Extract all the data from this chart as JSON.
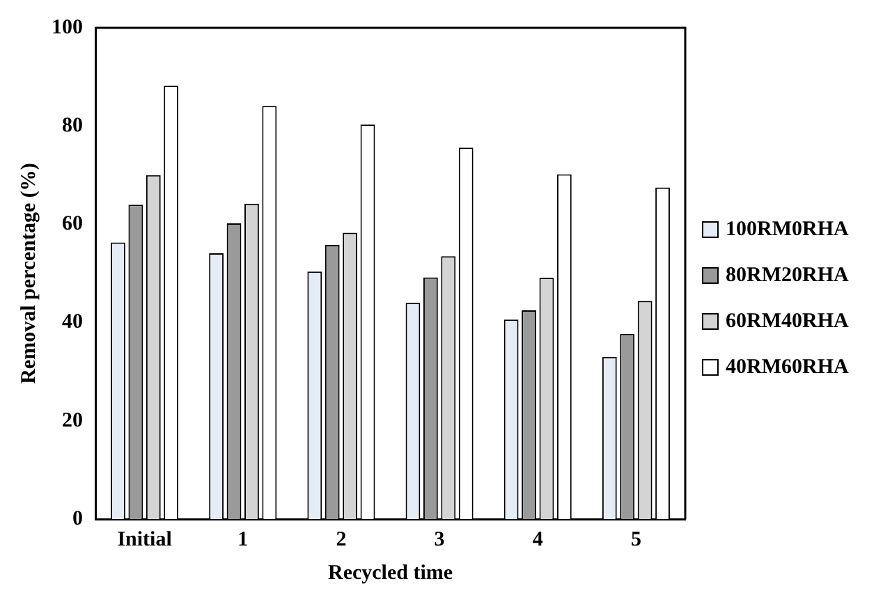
{
  "chart_data": {
    "type": "bar",
    "xlabel": "Recycled time",
    "ylabel": "Removal percentage (%)",
    "categories": [
      "Initial",
      "1",
      "2",
      "3",
      "4",
      "5"
    ],
    "series": [
      {
        "name": "100RM0RHA",
        "color": "#e6ecf5",
        "values": [
          56.3,
          54.1,
          50.4,
          44,
          40.6,
          33
        ]
      },
      {
        "name": "80RM20RHA",
        "color": "#9a9a9a",
        "values": [
          64,
          60.2,
          55.8,
          49.2,
          42.5,
          37.7
        ]
      },
      {
        "name": "60RM40RHA",
        "color": "#d4d4d4",
        "values": [
          70,
          64.2,
          58.3,
          53.5,
          49.1,
          44.4
        ]
      },
      {
        "name": "40RM60RHA",
        "color": "#ffffff",
        "values": [
          88.2,
          84.1,
          80.3,
          75.6,
          70.2,
          67.5
        ]
      }
    ],
    "ylim": [
      0,
      100
    ],
    "yticks": [
      0,
      20,
      40,
      60,
      80,
      100
    ],
    "grid": false,
    "legend": "right"
  }
}
